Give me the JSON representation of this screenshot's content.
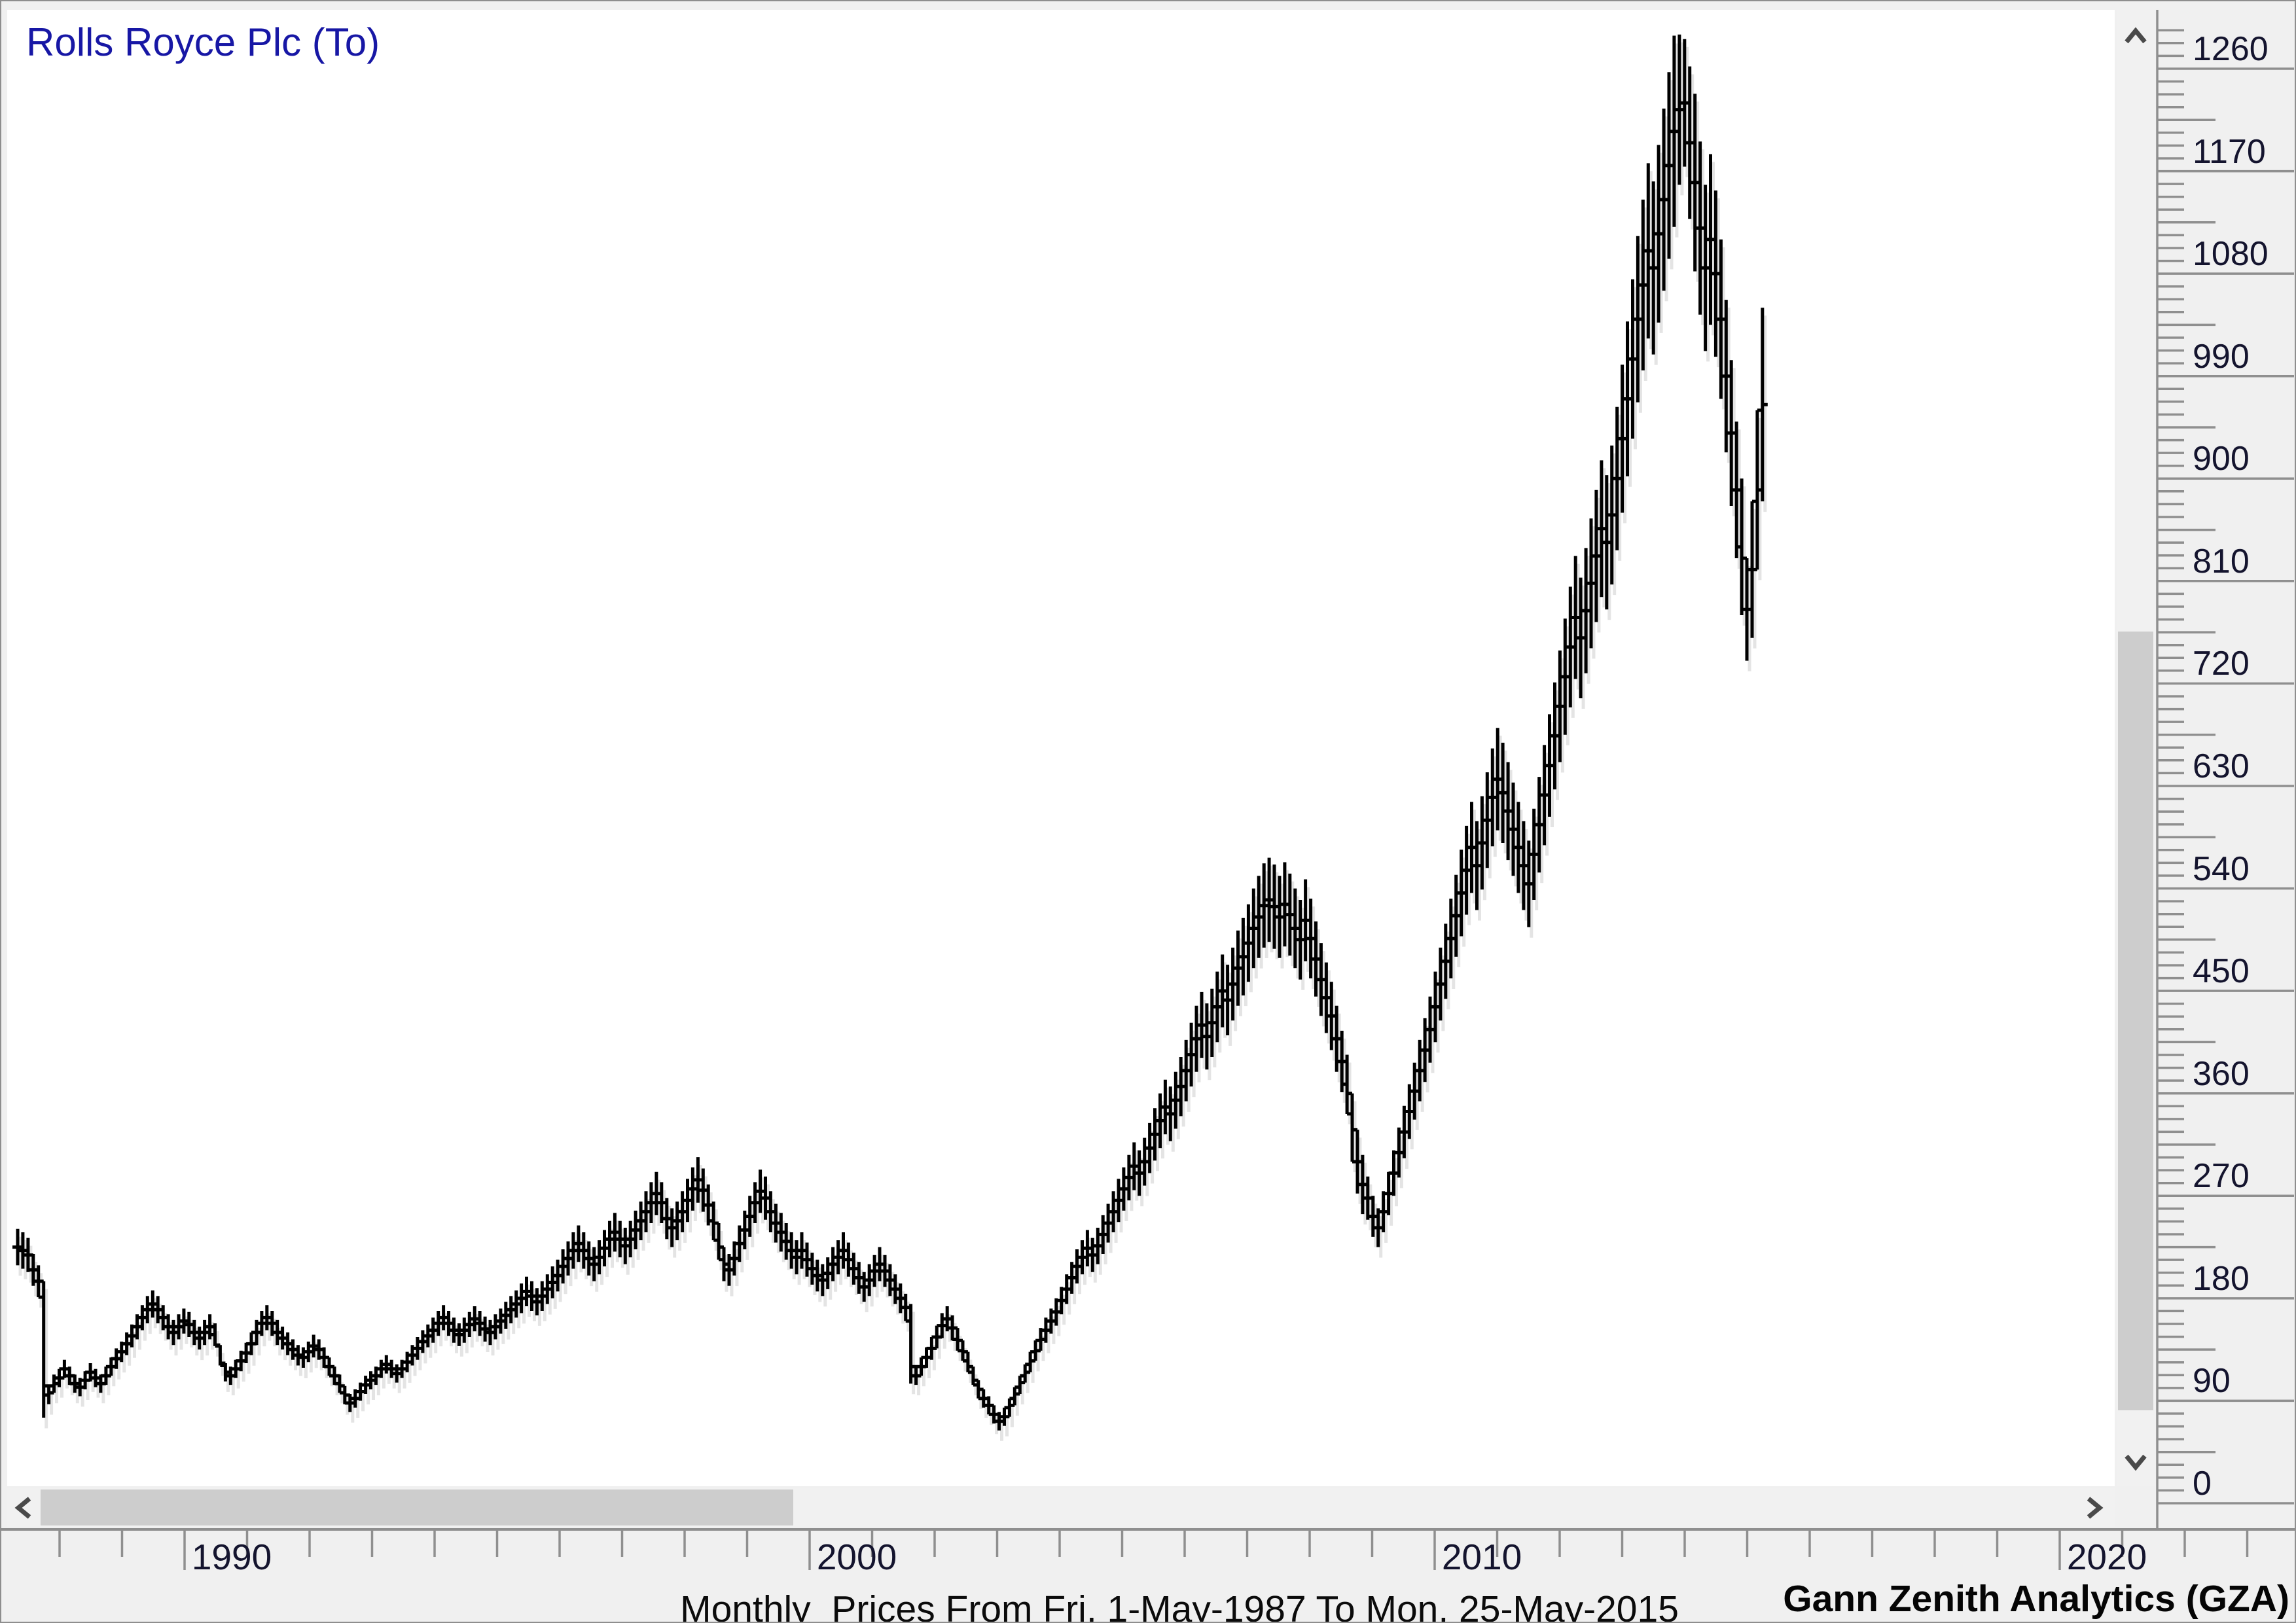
{
  "window": {
    "title": "Rolls Royce Plc (To)"
  },
  "caption": "Monthly  Prices From Fri, 1-May-1987 To Mon, 25-May-2015",
  "watermark": "Gann Zenith Analytics (GZA)",
  "colors": {
    "title_text": "#1717a5",
    "axis_text": "#14142e",
    "bar": "#000000",
    "axis_line": "#8f8f8f",
    "background": "#f0f0f0",
    "plot_background": "#ffffff",
    "scroll_track": "#f1f1f1",
    "scroll_thumb": "#cdcdcd",
    "chevron": "#4a4a4a"
  },
  "y_axis": {
    "labels": [
      0,
      90,
      180,
      270,
      360,
      450,
      540,
      630,
      720,
      810,
      900,
      990,
      1080,
      1170,
      1260
    ],
    "minor_step": 11.25,
    "medium_step": 45,
    "major_step": 90,
    "max_shown": 1293.75
  },
  "x_axis": {
    "year_tick_start": 1988,
    "year_tick_end": 2026,
    "decade_labels": [
      "1990",
      "2000",
      "2010",
      "2020"
    ]
  },
  "scrollbars": {
    "vertical": {
      "up_icon": "chevron-up-icon",
      "down_icon": "chevron-down-icon"
    },
    "horizontal": {
      "left_icon": "chevron-left-icon",
      "right_icon": "chevron-right-icon"
    }
  },
  "chart_data": {
    "type": "ohlc",
    "title": "Rolls Royce Plc (To)",
    "period": "monthly",
    "first_bar": "May-1987",
    "last_bar": "May-2015",
    "xlabel": "",
    "ylabel": "",
    "x_tick_years": [
      1990,
      2000,
      2010,
      2020
    ],
    "ylim": [
      0,
      1296
    ],
    "y_tick_step": 90,
    "grid": false,
    "legend": "none",
    "bars_high_low": [
      [
        241,
        209
      ],
      [
        238,
        206
      ],
      [
        233,
        203
      ],
      [
        219,
        191
      ],
      [
        209,
        181
      ],
      [
        195,
        75
      ],
      [
        103,
        87
      ],
      [
        113,
        97
      ],
      [
        118,
        102
      ],
      [
        126,
        110
      ],
      [
        120,
        104
      ],
      [
        113,
        97
      ],
      [
        110,
        94
      ],
      [
        116,
        100
      ],
      [
        123,
        107
      ],
      [
        118,
        102
      ],
      [
        113,
        97
      ],
      [
        120,
        104
      ],
      [
        128,
        112
      ],
      [
        136,
        118
      ],
      [
        142,
        124
      ],
      [
        150,
        130
      ],
      [
        157,
        137
      ],
      [
        166,
        144
      ],
      [
        174,
        152
      ],
      [
        182,
        158
      ],
      [
        187,
        163
      ],
      [
        182,
        158
      ],
      [
        174,
        152
      ],
      [
        166,
        144
      ],
      [
        161,
        139
      ],
      [
        166,
        144
      ],
      [
        171,
        149
      ],
      [
        168,
        146
      ],
      [
        161,
        139
      ],
      [
        155,
        135
      ],
      [
        161,
        139
      ],
      [
        166,
        144
      ],
      [
        158,
        138
      ],
      [
        139,
        121
      ],
      [
        123,
        107
      ],
      [
        120,
        104
      ],
      [
        126,
        110
      ],
      [
        134,
        116
      ],
      [
        141,
        123
      ],
      [
        150,
        130
      ],
      [
        161,
        139
      ],
      [
        169,
        147
      ],
      [
        174,
        152
      ],
      [
        169,
        147
      ],
      [
        161,
        139
      ],
      [
        155,
        135
      ],
      [
        150,
        130
      ],
      [
        144,
        126
      ],
      [
        139,
        121
      ],
      [
        137,
        119
      ],
      [
        142,
        124
      ],
      [
        148,
        128
      ],
      [
        144,
        126
      ],
      [
        137,
        119
      ],
      [
        128,
        112
      ],
      [
        120,
        104
      ],
      [
        113,
        97
      ],
      [
        103,
        87
      ],
      [
        96,
        80
      ],
      [
        100,
        84
      ],
      [
        106,
        90
      ],
      [
        112,
        96
      ],
      [
        116,
        100
      ],
      [
        120,
        104
      ],
      [
        126,
        110
      ],
      [
        130,
        114
      ],
      [
        126,
        110
      ],
      [
        122,
        106
      ],
      [
        126,
        110
      ],
      [
        133,
        115
      ],
      [
        139,
        121
      ],
      [
        146,
        126
      ],
      [
        152,
        132
      ],
      [
        157,
        137
      ],
      [
        163,
        141
      ],
      [
        169,
        147
      ],
      [
        174,
        152
      ],
      [
        169,
        147
      ],
      [
        163,
        141
      ],
      [
        158,
        138
      ],
      [
        163,
        141
      ],
      [
        168,
        146
      ],
      [
        173,
        151
      ],
      [
        169,
        147
      ],
      [
        164,
        142
      ],
      [
        161,
        139
      ],
      [
        166,
        144
      ],
      [
        171,
        149
      ],
      [
        177,
        153
      ],
      [
        182,
        158
      ],
      [
        187,
        163
      ],
      [
        193,
        167
      ],
      [
        199,
        173
      ],
      [
        195,
        169
      ],
      [
        189,
        165
      ],
      [
        195,
        169
      ],
      [
        201,
        175
      ],
      [
        208,
        180
      ],
      [
        214,
        186
      ],
      [
        223,
        193
      ],
      [
        230,
        200
      ],
      [
        238,
        206
      ],
      [
        244,
        212
      ],
      [
        238,
        206
      ],
      [
        230,
        200
      ],
      [
        225,
        195
      ],
      [
        231,
        201
      ],
      [
        240,
        208
      ],
      [
        248,
        216
      ],
      [
        255,
        221
      ],
      [
        248,
        216
      ],
      [
        242,
        210
      ],
      [
        248,
        216
      ],
      [
        257,
        223
      ],
      [
        265,
        231
      ],
      [
        274,
        238
      ],
      [
        282,
        246
      ],
      [
        291,
        253
      ],
      [
        282,
        246
      ],
      [
        268,
        232
      ],
      [
        259,
        225
      ],
      [
        265,
        231
      ],
      [
        274,
        238
      ],
      [
        285,
        247
      ],
      [
        295,
        257
      ],
      [
        304,
        264
      ],
      [
        294,
        256
      ],
      [
        280,
        244
      ],
      [
        265,
        231
      ],
      [
        246,
        214
      ],
      [
        225,
        195
      ],
      [
        219,
        191
      ],
      [
        230,
        200
      ],
      [
        244,
        212
      ],
      [
        257,
        223
      ],
      [
        270,
        234
      ],
      [
        282,
        246
      ],
      [
        293,
        255
      ],
      [
        287,
        249
      ],
      [
        274,
        238
      ],
      [
        263,
        229
      ],
      [
        255,
        221
      ],
      [
        246,
        214
      ],
      [
        238,
        206
      ],
      [
        231,
        201
      ],
      [
        238,
        206
      ],
      [
        229,
        199
      ],
      [
        220,
        192
      ],
      [
        214,
        186
      ],
      [
        210,
        182
      ],
      [
        216,
        188
      ],
      [
        225,
        195
      ],
      [
        231,
        201
      ],
      [
        238,
        206
      ],
      [
        229,
        199
      ],
      [
        220,
        192
      ],
      [
        212,
        184
      ],
      [
        203,
        177
      ],
      [
        210,
        182
      ],
      [
        218,
        190
      ],
      [
        225,
        195
      ],
      [
        218,
        190
      ],
      [
        210,
        182
      ],
      [
        201,
        175
      ],
      [
        193,
        167
      ],
      [
        184,
        160
      ],
      [
        175,
        105
      ],
      [
        120,
        104
      ],
      [
        128,
        112
      ],
      [
        137,
        119
      ],
      [
        146,
        126
      ],
      [
        156,
        136
      ],
      [
        167,
        145
      ],
      [
        173,
        151
      ],
      [
        165,
        143
      ],
      [
        154,
        134
      ],
      [
        143,
        125
      ],
      [
        133,
        115
      ],
      [
        120,
        104
      ],
      [
        108,
        92
      ],
      [
        100,
        84
      ],
      [
        94,
        78
      ],
      [
        86,
        70
      ],
      [
        80,
        64
      ],
      [
        84,
        68
      ],
      [
        92,
        76
      ],
      [
        102,
        86
      ],
      [
        112,
        96
      ],
      [
        122,
        106
      ],
      [
        133,
        115
      ],
      [
        143,
        125
      ],
      [
        154,
        134
      ],
      [
        163,
        141
      ],
      [
        171,
        149
      ],
      [
        180,
        156
      ],
      [
        190,
        166
      ],
      [
        201,
        175
      ],
      [
        212,
        184
      ],
      [
        223,
        193
      ],
      [
        231,
        201
      ],
      [
        240,
        208
      ],
      [
        233,
        203
      ],
      [
        242,
        210
      ],
      [
        253,
        219
      ],
      [
        263,
        229
      ],
      [
        274,
        238
      ],
      [
        285,
        247
      ],
      [
        295,
        257
      ],
      [
        306,
        266
      ],
      [
        317,
        275
      ],
      [
        310,
        270
      ],
      [
        321,
        279
      ],
      [
        334,
        290
      ],
      [
        347,
        301
      ],
      [
        360,
        312
      ],
      [
        372,
        324
      ],
      [
        366,
        318
      ],
      [
        379,
        329
      ],
      [
        392,
        340
      ],
      [
        407,
        353
      ],
      [
        422,
        366
      ],
      [
        437,
        379
      ],
      [
        449,
        391
      ],
      [
        439,
        381
      ],
      [
        452,
        392
      ],
      [
        467,
        405
      ],
      [
        482,
        418
      ],
      [
        473,
        411
      ],
      [
        488,
        424
      ],
      [
        503,
        437
      ],
      [
        514,
        446
      ],
      [
        526,
        458
      ],
      [
        540,
        470
      ],
      [
        551,
        479
      ],
      [
        562,
        488
      ],
      [
        567,
        493
      ],
      [
        561,
        487
      ],
      [
        551,
        479
      ],
      [
        563,
        489
      ],
      [
        553,
        481
      ],
      [
        540,
        470
      ],
      [
        530,
        460
      ],
      [
        548,
        476
      ],
      [
        531,
        461
      ],
      [
        511,
        445
      ],
      [
        492,
        428
      ],
      [
        475,
        413
      ],
      [
        458,
        398
      ],
      [
        437,
        379
      ],
      [
        415,
        361
      ],
      [
        394,
        342
      ],
      [
        360,
        300
      ],
      [
        328,
        272
      ],
      [
        306,
        254
      ],
      [
        287,
        249
      ],
      [
        270,
        234
      ],
      [
        259,
        225
      ],
      [
        274,
        238
      ],
      [
        291,
        253
      ],
      [
        310,
        270
      ],
      [
        330,
        286
      ],
      [
        349,
        303
      ],
      [
        368,
        320
      ],
      [
        387,
        337
      ],
      [
        407,
        353
      ],
      [
        426,
        370
      ],
      [
        445,
        387
      ],
      [
        467,
        405
      ],
      [
        488,
        424
      ],
      [
        509,
        443
      ],
      [
        531,
        461
      ],
      [
        552,
        480
      ],
      [
        574,
        498
      ],
      [
        595,
        517
      ],
      [
        616,
        536
      ],
      [
        599,
        521
      ],
      [
        621,
        539
      ],
      [
        642,
        558
      ],
      [
        663,
        577
      ],
      [
        681,
        591
      ],
      [
        668,
        580
      ],
      [
        651,
        565
      ],
      [
        633,
        551
      ],
      [
        616,
        536
      ],
      [
        599,
        521
      ],
      [
        582,
        506
      ],
      [
        610,
        530
      ],
      [
        638,
        554
      ],
      [
        666,
        578
      ],
      [
        693,
        603
      ],
      [
        721,
        627
      ],
      [
        749,
        651
      ],
      [
        777,
        675
      ],
      [
        805,
        699
      ],
      [
        832,
        724
      ],
      [
        813,
        707
      ],
      [
        839,
        729
      ],
      [
        865,
        751
      ],
      [
        890,
        774
      ],
      [
        916,
        796
      ],
      [
        903,
        785
      ],
      [
        929,
        807
      ],
      [
        963,
        837
      ],
      [
        1000,
        870
      ],
      [
        1038,
        902
      ],
      [
        1075,
        935
      ],
      [
        1113,
        967
      ],
      [
        1145,
        995
      ],
      [
        1177,
        1023
      ],
      [
        1161,
        1009
      ],
      [
        1193,
        1037
      ],
      [
        1225,
        1065
      ],
      [
        1257,
        1093
      ],
      [
        1289,
        1121
      ],
      [
        1290,
        1158
      ],
      [
        1286,
        1174
      ],
      [
        1262,
        1128
      ],
      [
        1238,
        1082
      ],
      [
        1196,
        1044
      ],
      [
        1158,
        1012
      ],
      [
        1185,
        1035
      ],
      [
        1153,
        1007
      ],
      [
        1110,
        970
      ],
      [
        1057,
        923
      ],
      [
        1004,
        876
      ],
      [
        950,
        830
      ],
      [
        900,
        780
      ],
      [
        830,
        740
      ],
      [
        880,
        760
      ],
      [
        960,
        820
      ],
      [
        1050,
        880
      ]
    ]
  }
}
